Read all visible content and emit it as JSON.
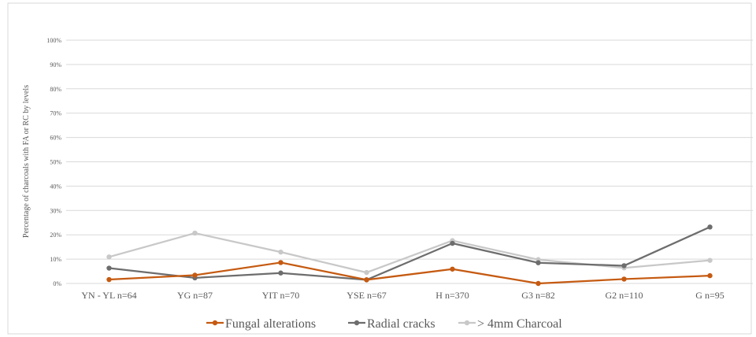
{
  "chart_data": {
    "type": "line",
    "ylabel": "Percentage of charcoals with FA or RC by levels",
    "categories": [
      "YN - YL n=64",
      "YG n=87",
      "YIT n=70",
      "YSE n=67",
      "H n=370",
      "G3 n=82",
      "G2 n=110",
      "G n=95"
    ],
    "y_ticks": [
      "0%",
      "10%",
      "20%",
      "30%",
      "40%",
      "50%",
      "60%",
      "70%",
      "80%",
      "90%",
      "100%"
    ],
    "ylim": [
      0,
      100
    ],
    "grid": true,
    "legend_position": "bottom",
    "series": [
      {
        "name": "Fungal alterations",
        "color": "#c55a11",
        "values": [
          1.6,
          3.4,
          8.6,
          1.5,
          5.9,
          0.0,
          1.8,
          3.2
        ]
      },
      {
        "name": "Radial cracks",
        "color": "#6d6d6d",
        "values": [
          6.3,
          2.3,
          4.3,
          1.5,
          16.5,
          8.5,
          7.3,
          23.2
        ]
      },
      {
        "name": "> 4mm Charcoal",
        "color": "#c8c8c8",
        "values": [
          10.9,
          20.7,
          12.9,
          4.5,
          17.6,
          9.8,
          6.4,
          9.5
        ]
      }
    ]
  }
}
